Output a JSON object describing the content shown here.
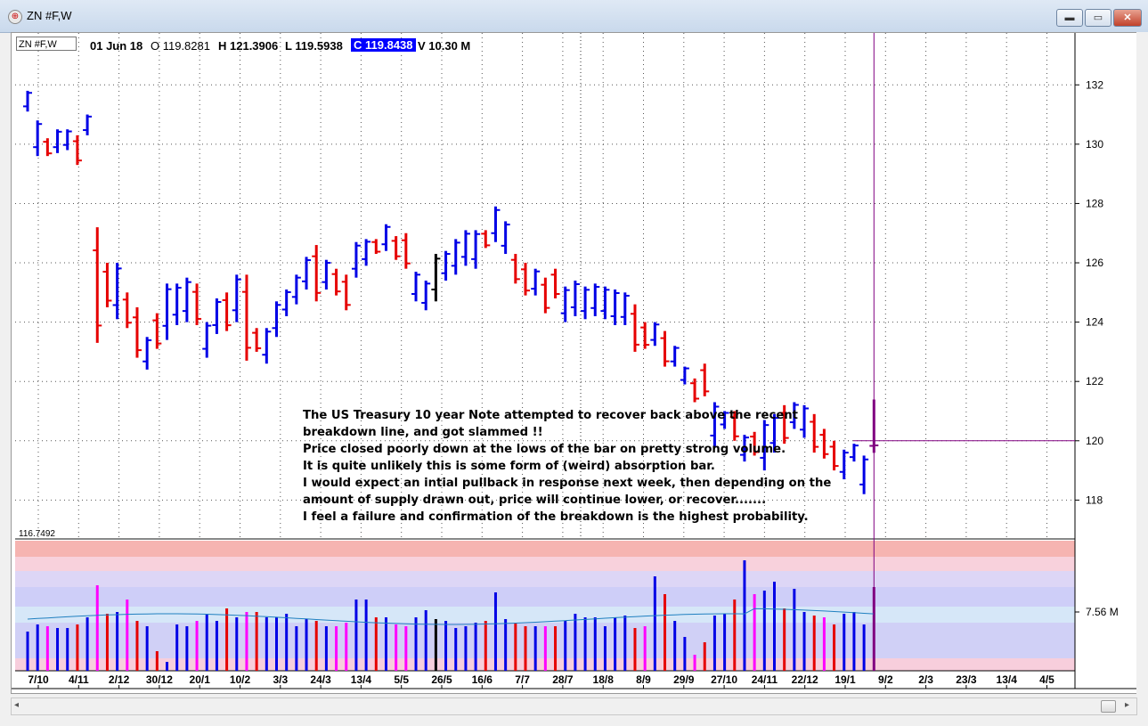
{
  "window": {
    "title": "ZN #F,W",
    "minimize": "▬",
    "restore": "▭",
    "close": "✕"
  },
  "header": {
    "symbol_box": "ZN #F,W",
    "date": "01 Jun 18",
    "open": "O 119.8281",
    "high": "H 121.3906",
    "low": "L 119.5938",
    "close": "C 119.8438",
    "volume": "V 10.30 M"
  },
  "price_axis": {
    "ticks": [
      132,
      130,
      128,
      126,
      124,
      122,
      120,
      118
    ],
    "range": [
      116.75,
      133.75
    ],
    "bottom_label": "116.7492"
  },
  "volume_axis": {
    "label": "7.56 M"
  },
  "x_axis": {
    "labels": [
      "7/10",
      "4/11",
      "2/12",
      "30/12",
      "20/1",
      "10/2",
      "3/3",
      "24/3",
      "13/4",
      "5/5",
      "26/5",
      "16/6",
      "7/7",
      "28/7",
      "18/8",
      "8/9",
      "29/9",
      "27/10",
      "24/11",
      "22/12",
      "19/1",
      "9/2",
      "2/3",
      "23/3",
      "13/4",
      "4/5"
    ]
  },
  "annotation": {
    "lines": [
      "The US Treasury 10 year Note attempted to recover back above the recent",
      "breakdown line, and got slammed !!",
      "Price closed poorly down at the lows of the bar on pretty strong volume.",
      "It is quite unlikely this is some form of (weird) absorption bar.",
      "I would expect an intial pullback in response next week, then depending on the",
      "amount of supply drawn out, price will continue lower, or recover.......",
      "I feel a failure and confirmation of the breakdown is the highest probability."
    ]
  },
  "colors": {
    "up": "#0000e6",
    "down": "#e60000",
    "neutral": "#000000",
    "cursor": "#800080",
    "low_vol": "#ff00ff"
  },
  "chart_data": {
    "type": "ohlc",
    "price": {
      "high": [
        131.8,
        130.8,
        130.2,
        130.5,
        130.5,
        130.3,
        131.0,
        127.2,
        126.0,
        126.0,
        125.0,
        124.5,
        123.5,
        124.3,
        125.3,
        125.3,
        125.5,
        125.3,
        124.0,
        124.8,
        125.0,
        125.6,
        125.6,
        123.8,
        123.8,
        124.7,
        125.1,
        125.6,
        126.2,
        126.6,
        126.1,
        125.8,
        125.6,
        126.7,
        126.8,
        126.8,
        127.3,
        126.9,
        127.0,
        125.7,
        125.4,
        126.3,
        126.4,
        126.8,
        127.1,
        127.1,
        127.1,
        127.9,
        127.4,
        126.3,
        126.0,
        125.8,
        125.5,
        125.8,
        125.2,
        125.4,
        125.2,
        125.3,
        125.2,
        125.1,
        125.0,
        124.6,
        124.0,
        124.0,
        123.7,
        123.2,
        122.5,
        122.1,
        122.6,
        121.3,
        121.0,
        121.0,
        120.2,
        120.3,
        120.7,
        120.9,
        121.2,
        121.3,
        121.2,
        120.9,
        120.4,
        120.0,
        119.7,
        119.9,
        119.5,
        121.4
      ]
    }
  }
}
